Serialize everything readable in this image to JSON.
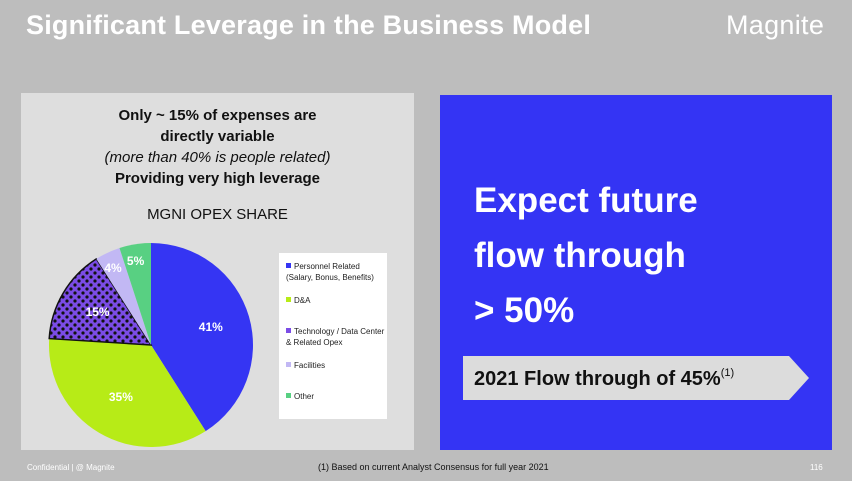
{
  "slide": {
    "title": "Significant Leverage in the Business Model",
    "logo_text": "Magnite",
    "footer_left": "Confidential | @ Magnite",
    "footnote": "(1) Based on current Analyst Consensus for full year 2021",
    "page_number": "116"
  },
  "left_panel": {
    "line1": "Only ~ 15% of expenses are",
    "line2": "directly variable",
    "line3": "(more than 40% is people related)",
    "line4": "Providing very high leverage"
  },
  "right_panel": {
    "line1": "Expect future",
    "line2": "flow through",
    "line3": "> 50%",
    "banner_text": "2021 Flow through of 45%",
    "banner_sup": "(1)"
  },
  "colors": {
    "background": "#bdbdbd",
    "panel_left": "#dedede",
    "panel_right": "#3434f4",
    "personnel": "#3535f3",
    "da": "#b7eb17",
    "technology": "#7b4ce6",
    "facilities": "#c2b8f4",
    "other": "#58d082"
  },
  "chart_data": {
    "type": "pie",
    "title": "MGNI OPEX SHARE",
    "categories": [
      "Personnel Related (Salary, Bonus, Benefits)",
      "D&A",
      "Technology / Data Center & Related Opex",
      "Facilities",
      "Other"
    ],
    "values": [
      41,
      35,
      15,
      4,
      5
    ],
    "data_labels": [
      "41%",
      "35%",
      "15%",
      "4%",
      "5%"
    ],
    "legend": [
      {
        "label": "Personnel Related (Salary, Bonus, Benefits)",
        "color": "#3535f3"
      },
      {
        "label": "D&A",
        "color": "#b7eb17"
      },
      {
        "label": "Technology / Data Center & Related Opex",
        "color": "#7b4ce6"
      },
      {
        "label": "Facilities",
        "color": "#c2b8f4"
      },
      {
        "label": "Other",
        "color": "#58d082"
      }
    ],
    "legend_position": "right"
  }
}
